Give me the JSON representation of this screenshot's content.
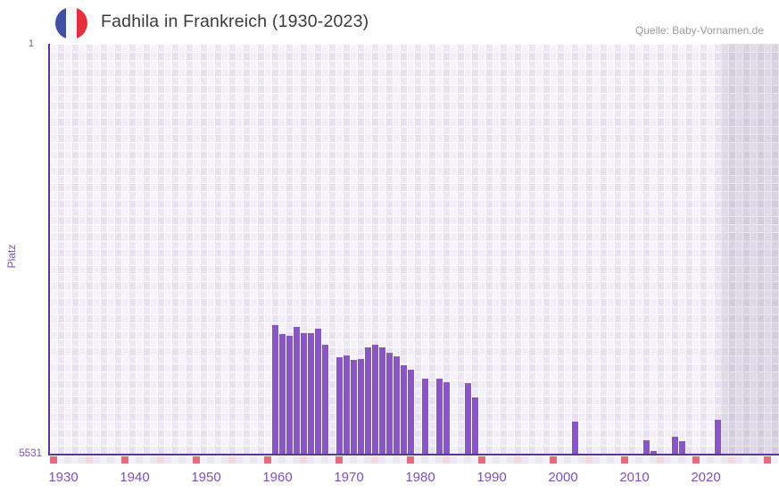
{
  "header": {
    "title": "Fadhila in Frankreich (1930-2023)",
    "source": "Quelle: Baby-Vornamen.de",
    "flag_icon": "french-flag-icon"
  },
  "axes": {
    "y_label": "Platz",
    "y_top_label": "1",
    "y_bottom_label": "5531",
    "x_tick_labels": [
      "1930",
      "1940",
      "1950",
      "1960",
      "1970",
      "1980",
      "1990",
      "2000",
      "2010",
      "2020"
    ]
  },
  "chart_data": {
    "type": "bar",
    "title": "Fadhila in Frankreich (1930-2023)",
    "xlabel": "",
    "ylabel": "Platz",
    "ylim": [
      1,
      5531
    ],
    "y_inverted": true,
    "x_display_range": [
      1930,
      2031
    ],
    "data_range": [
      1930,
      2023
    ],
    "future_no_data_band_start": 2024,
    "grid": true,
    "x": [
      1961,
      1962,
      1963,
      1964,
      1965,
      1966,
      1967,
      1968,
      1970,
      1971,
      1972,
      1973,
      1974,
      1975,
      1976,
      1977,
      1978,
      1979,
      1980,
      1982,
      1984,
      1985,
      1988,
      1989,
      2003,
      2013,
      2014,
      2017,
      2018,
      2023
    ],
    "values": [
      3800,
      3920,
      3940,
      3820,
      3900,
      3900,
      3850,
      4060,
      4230,
      4210,
      4260,
      4250,
      4100,
      4060,
      4100,
      4170,
      4220,
      4340,
      4400,
      4520,
      4520,
      4570,
      4580,
      4770,
      5100,
      5350,
      5495,
      5300,
      5360,
      5070
    ]
  },
  "colors": {
    "bar": "#8b55c5",
    "axis_line": "#5b3692",
    "axis_label": "#7c54b4",
    "plot_background": "#e7dff2",
    "future_band_overlay": "rgba(98,88,122,0.14)",
    "tick_year": "#ece6f5",
    "tick_half_decade": "#f2d9e0",
    "tick_decade": "#e06e7e",
    "title_text": "#3b3b3b",
    "source_text": "#9b9b9b",
    "flag_blue": "#3f4fa5",
    "flag_red": "#e52f3b"
  }
}
